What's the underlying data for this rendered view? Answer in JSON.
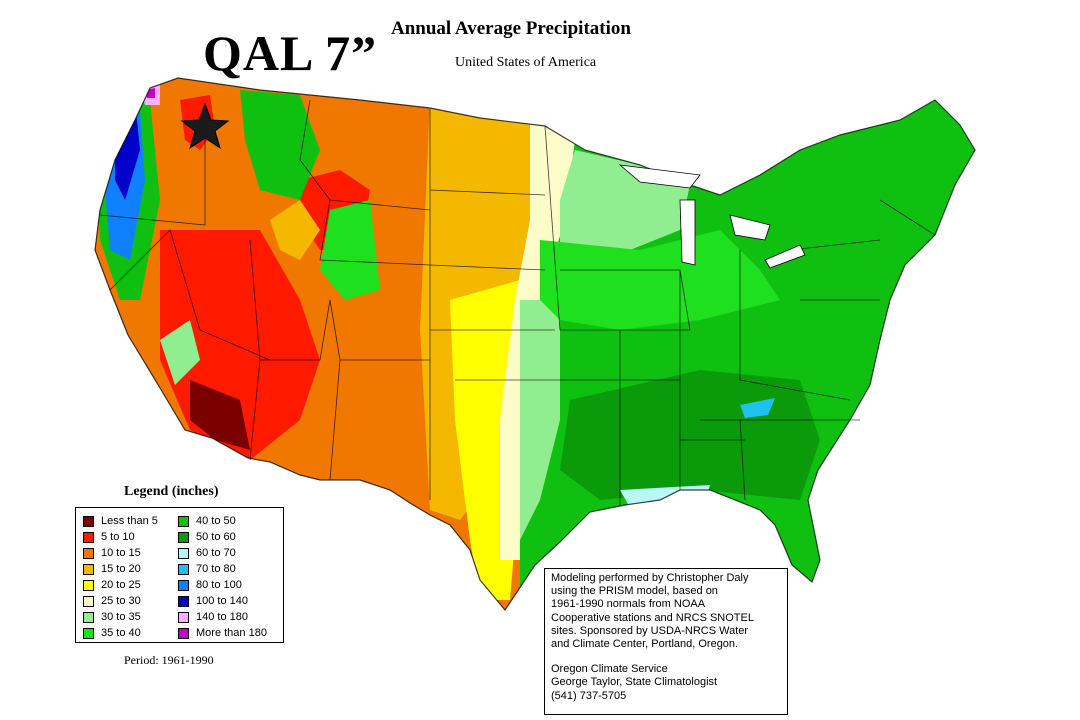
{
  "header": {
    "overlay_label": "QAL 7”",
    "title": "Annual Average Precipitation",
    "subtitle": "United States of America"
  },
  "map": {
    "marker_icon": "star-icon",
    "colors": {
      "lt5": "#7a0000",
      "c5_10": "#ff1a00",
      "c10_15": "#f07800",
      "c15_20": "#f5b800",
      "c20_25": "#ffff00",
      "c25_30": "#fcfcc8",
      "c30_35": "#90ee90",
      "c35_40": "#1fe01f",
      "c40_50": "#10c010",
      "c50_60": "#0a9a0a",
      "c60_70": "#b8f8f8",
      "c70_80": "#20c0f0",
      "c80_100": "#1080ff",
      "c100_140": "#0000c8",
      "c140_180": "#ffb0ff",
      "gt180": "#c000c0"
    }
  },
  "legend": {
    "title": "Legend (inches)",
    "items": [
      {
        "label": "Less than 5",
        "color": "#7a0000"
      },
      {
        "label": "5 to 10",
        "color": "#ff1a00"
      },
      {
        "label": "10 to 15",
        "color": "#f07800"
      },
      {
        "label": "15 to 20",
        "color": "#f5b800"
      },
      {
        "label": "20 to 25",
        "color": "#ffff00"
      },
      {
        "label": "25 to 30",
        "color": "#fcfcc8"
      },
      {
        "label": "30 to 35",
        "color": "#90ee90"
      },
      {
        "label": "35 to 40",
        "color": "#1fe01f"
      },
      {
        "label": "40 to 50",
        "color": "#10c010"
      },
      {
        "label": "50 to 60",
        "color": "#0a9a0a"
      },
      {
        "label": "60 to 70",
        "color": "#b8f8f8"
      },
      {
        "label": "70 to 80",
        "color": "#20c0f0"
      },
      {
        "label": "80 to 100",
        "color": "#1080ff"
      },
      {
        "label": "100 to 140",
        "color": "#0000c8"
      },
      {
        "label": "140 to 180",
        "color": "#ffb0ff"
      },
      {
        "label": "More than 180",
        "color": "#c000c0"
      }
    ],
    "period": "Period: 1961-1990"
  },
  "credits": {
    "lines": [
      "Modeling performed by Christopher Daly",
      "using the PRISM model, based on",
      "1961-1990 normals from NOAA",
      "Cooperative stations and NRCS SNOTEL",
      "sites.  Sponsored by USDA-NRCS Water",
      "and Climate Center, Portland, Oregon."
    ],
    "org_lines": [
      "Oregon Climate Service",
      "George Taylor, State Climatologist",
      "(541) 737-5705"
    ]
  }
}
